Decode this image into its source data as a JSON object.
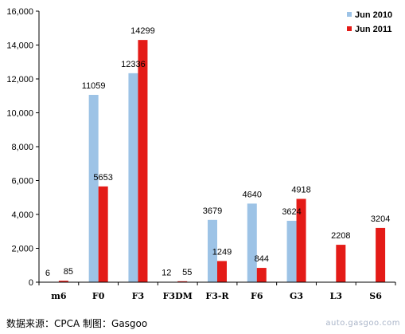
{
  "chart_data": {
    "type": "bar",
    "categories": [
      "m6",
      "F0",
      "F3",
      "F3DM",
      "F3-R",
      "F6",
      "G3",
      "L3",
      "S6"
    ],
    "series": [
      {
        "name": "Jun 2010",
        "color": "#9dc3e6",
        "values": [
          6,
          11059,
          12336,
          12,
          3679,
          4640,
          3624,
          0,
          0
        ],
        "labels": [
          "6",
          "11059",
          "12336",
          "12",
          "3679",
          "4640",
          "3624",
          "",
          ""
        ]
      },
      {
        "name": "Jun 2011",
        "color": "#e41b17",
        "values": [
          85,
          5653,
          14299,
          55,
          1249,
          844,
          4918,
          2208,
          3204
        ],
        "labels": [
          "85",
          "5653",
          "14299",
          "55",
          "1249",
          "844",
          "4918",
          "2208",
          "3204"
        ]
      }
    ],
    "y_ticks": [
      "0",
      "2,000",
      "4,000",
      "6,000",
      "8,000",
      "10,000",
      "12,000",
      "14,000",
      "16,000"
    ],
    "ylim": [
      0,
      16000
    ],
    "grid": false,
    "legend_position": "top-right"
  },
  "footer": {
    "source": "数据来源：CPCA  制图：Gasgoo",
    "watermark": "auto.gasgoo.com"
  }
}
